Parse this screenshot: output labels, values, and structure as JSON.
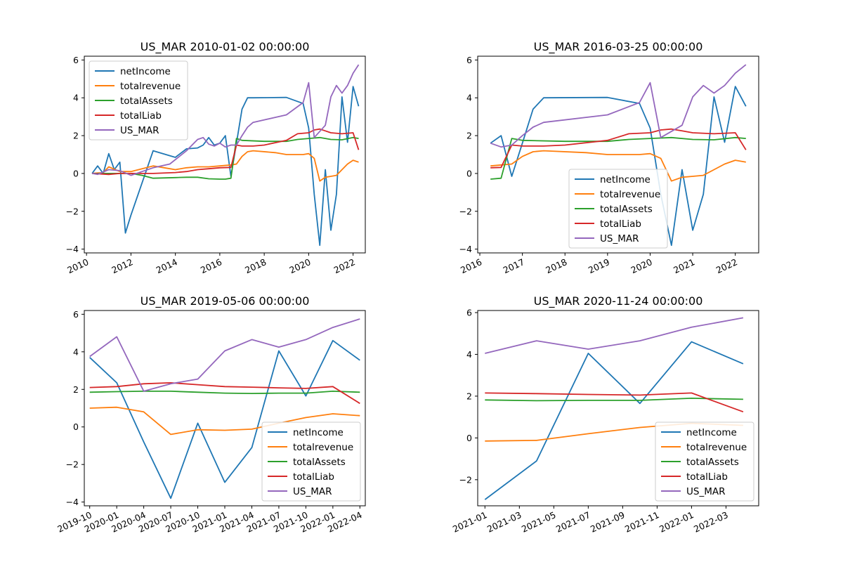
{
  "colors": {
    "netIncome": "#1f77b4",
    "totalrevenue": "#ff7f0e",
    "totalAssets": "#2ca02c",
    "totalLiab": "#d62728",
    "US_MAR": "#9467bd"
  },
  "chart_data": [
    {
      "type": "line",
      "title": "US_MAR 2010-01-02 00:00:00",
      "xlim": [
        2009.9,
        2022.55
      ],
      "ylim": [
        -4.2,
        6.2
      ],
      "xticks": [
        2010,
        2012,
        2014,
        2016,
        2018,
        2020,
        2022
      ],
      "xticklabels": [
        "2010",
        "2012",
        "2014",
        "2016",
        "2018",
        "2020",
        "2022"
      ],
      "yticks": [
        -4,
        -2,
        0,
        2,
        4,
        6
      ],
      "yticklabels": [
        "−4",
        "−2",
        "0",
        "2",
        "4",
        "6"
      ],
      "legend": "upper left",
      "series": [
        {
          "name": "netIncome",
          "x": [
            2010.25,
            2010.5,
            2010.75,
            2011.0,
            2011.25,
            2011.5,
            2011.75,
            2012.0,
            2013.0,
            2014.0,
            2014.5,
            2015.0,
            2015.25,
            2015.5,
            2015.75,
            2016.0,
            2016.25,
            2016.5,
            2016.75,
            2017.0,
            2017.25,
            2017.5,
            2019.0,
            2019.75,
            2020.0,
            2020.25,
            2020.5,
            2020.75,
            2021.0,
            2021.25,
            2021.5,
            2021.75,
            2022.0,
            2022.25
          ],
          "y": [
            0.0,
            0.4,
            0.0,
            1.05,
            0.2,
            0.6,
            -3.15,
            -2.2,
            1.2,
            0.85,
            1.3,
            1.35,
            1.5,
            1.9,
            1.5,
            1.6,
            2.0,
            -0.15,
            1.6,
            3.4,
            4.0,
            4.0,
            4.02,
            3.7,
            2.4,
            -1.1,
            -3.8,
            0.2,
            -3.0,
            -1.1,
            4.05,
            1.65,
            4.6,
            3.55
          ]
        },
        {
          "name": "totalrevenue",
          "x": [
            2010.25,
            2010.75,
            2011.0,
            2011.5,
            2012.0,
            2013.0,
            2013.5,
            2014.0,
            2014.5,
            2015.0,
            2015.5,
            2016.0,
            2016.5,
            2016.75,
            2017.0,
            2017.25,
            2017.5,
            2018.5,
            2019.0,
            2019.75,
            2020.0,
            2020.25,
            2020.5,
            2020.75,
            2021.0,
            2021.25,
            2021.5,
            2021.75,
            2022.0,
            2022.25
          ],
          "y": [
            0.0,
            0.05,
            0.35,
            0.1,
            0.1,
            0.4,
            0.3,
            0.2,
            0.3,
            0.35,
            0.35,
            0.4,
            0.45,
            0.5,
            0.9,
            1.15,
            1.2,
            1.1,
            1.0,
            1.0,
            1.05,
            0.8,
            -0.4,
            -0.2,
            -0.15,
            -0.1,
            0.2,
            0.5,
            0.7,
            0.6
          ]
        },
        {
          "name": "totalAssets",
          "x": [
            2010.25,
            2011.0,
            2012.0,
            2012.5,
            2013.0,
            2014.0,
            2014.5,
            2015.0,
            2015.5,
            2016.0,
            2016.25,
            2016.5,
            2016.75,
            2017.0,
            2018.0,
            2019.0,
            2019.5,
            2020.0,
            2020.5,
            2021.0,
            2021.5,
            2022.0,
            2022.25
          ],
          "y": [
            0.0,
            0.0,
            0.0,
            -0.1,
            -0.25,
            -0.22,
            -0.2,
            -0.2,
            -0.28,
            -0.3,
            -0.3,
            -0.25,
            1.85,
            1.75,
            1.7,
            1.7,
            1.8,
            1.85,
            1.9,
            1.8,
            1.78,
            1.9,
            1.85
          ]
        },
        {
          "name": "totalLiab",
          "x": [
            2010.25,
            2011.0,
            2011.5,
            2012.0,
            2013.0,
            2014.0,
            2014.5,
            2015.0,
            2015.5,
            2016.0,
            2016.5,
            2016.75,
            2017.0,
            2017.5,
            2018.0,
            2019.0,
            2019.5,
            2020.0,
            2020.25,
            2020.5,
            2020.75,
            2021.0,
            2021.5,
            2022.0,
            2022.25
          ],
          "y": [
            0.0,
            -0.05,
            0.0,
            0.0,
            0.0,
            0.05,
            0.1,
            0.2,
            0.25,
            0.3,
            0.32,
            1.5,
            1.45,
            1.45,
            1.5,
            1.75,
            2.1,
            2.15,
            2.3,
            2.35,
            2.25,
            2.15,
            2.1,
            2.15,
            1.25
          ]
        },
        {
          "name": "US_MAR",
          "x": [
            2010.25,
            2010.5,
            2011.0,
            2011.5,
            2012.0,
            2013.0,
            2013.75,
            2014.5,
            2014.75,
            2015.0,
            2015.25,
            2015.5,
            2015.75,
            2016.0,
            2016.25,
            2016.5,
            2016.75,
            2017.0,
            2017.25,
            2017.5,
            2019.0,
            2019.75,
            2020.0,
            2020.25,
            2020.75,
            2021.0,
            2021.25,
            2021.5,
            2021.75,
            2022.0,
            2022.25
          ],
          "y": [
            0.0,
            -0.05,
            0.2,
            0.15,
            -0.1,
            0.3,
            0.5,
            1.2,
            1.5,
            1.8,
            1.9,
            1.55,
            1.45,
            1.6,
            1.4,
            1.5,
            1.5,
            2.0,
            2.45,
            2.7,
            3.1,
            3.75,
            4.8,
            1.9,
            2.55,
            4.05,
            4.65,
            4.25,
            4.65,
            5.3,
            5.75
          ]
        }
      ]
    },
    {
      "type": "line",
      "title": "US_MAR 2016-03-25 00:00:00",
      "xlim": [
        2015.95,
        2022.55
      ],
      "ylim": [
        -4.2,
        6.2
      ],
      "xticks": [
        2016,
        2017,
        2018,
        2019,
        2020,
        2021,
        2022
      ],
      "xticklabels": [
        "2016",
        "2017",
        "2018",
        "2019",
        "2020",
        "2021",
        "2022"
      ],
      "yticks": [
        -4,
        -2,
        0,
        2,
        4,
        6
      ],
      "yticklabels": [
        "−4",
        "−2",
        "0",
        "2",
        "4",
        "6"
      ],
      "legend": "lower center",
      "series": [
        {
          "name": "netIncome",
          "x": [
            2016.25,
            2016.5,
            2016.75,
            2017.0,
            2017.25,
            2017.5,
            2019.0,
            2019.75,
            2020.0,
            2020.25,
            2020.5,
            2020.75,
            2021.0,
            2021.25,
            2021.5,
            2021.75,
            2022.0,
            2022.25
          ],
          "y": [
            1.6,
            2.0,
            -0.15,
            1.6,
            3.4,
            4.0,
            4.02,
            3.7,
            2.4,
            -1.1,
            -3.8,
            0.2,
            -3.0,
            -1.1,
            4.05,
            1.65,
            4.6,
            3.55
          ]
        },
        {
          "name": "totalrevenue",
          "x": [
            2016.25,
            2016.5,
            2016.75,
            2017.0,
            2017.25,
            2017.5,
            2018.5,
            2019.0,
            2019.75,
            2020.0,
            2020.25,
            2020.5,
            2020.75,
            2021.0,
            2021.25,
            2021.5,
            2021.75,
            2022.0,
            2022.25
          ],
          "y": [
            0.4,
            0.45,
            0.5,
            0.9,
            1.15,
            1.2,
            1.1,
            1.0,
            1.0,
            1.05,
            0.8,
            -0.4,
            -0.2,
            -0.15,
            -0.1,
            0.2,
            0.5,
            0.7,
            0.6
          ]
        },
        {
          "name": "totalAssets",
          "x": [
            2016.25,
            2016.5,
            2016.75,
            2017.0,
            2018.0,
            2019.0,
            2019.5,
            2020.0,
            2020.5,
            2021.0,
            2021.5,
            2022.0,
            2022.25
          ],
          "y": [
            -0.3,
            -0.25,
            1.85,
            1.75,
            1.7,
            1.7,
            1.8,
            1.85,
            1.9,
            1.8,
            1.78,
            1.9,
            1.85
          ]
        },
        {
          "name": "totalLiab",
          "x": [
            2016.25,
            2016.5,
            2016.75,
            2017.0,
            2017.5,
            2018.0,
            2019.0,
            2019.5,
            2020.0,
            2020.25,
            2020.5,
            2020.75,
            2021.0,
            2021.5,
            2022.0,
            2022.25
          ],
          "y": [
            0.3,
            0.32,
            1.5,
            1.45,
            1.45,
            1.5,
            1.75,
            2.1,
            2.15,
            2.3,
            2.35,
            2.25,
            2.15,
            2.1,
            2.15,
            1.25
          ]
        },
        {
          "name": "US_MAR",
          "x": [
            2016.25,
            2016.5,
            2016.75,
            2017.0,
            2017.25,
            2017.5,
            2019.0,
            2019.75,
            2020.0,
            2020.25,
            2020.75,
            2021.0,
            2021.25,
            2021.5,
            2021.75,
            2022.0,
            2022.25
          ],
          "y": [
            1.6,
            1.4,
            1.5,
            2.0,
            2.45,
            2.7,
            3.1,
            3.75,
            4.8,
            1.9,
            2.55,
            4.05,
            4.65,
            4.25,
            4.65,
            5.3,
            5.75
          ]
        }
      ]
    },
    {
      "type": "line",
      "title": "US_MAR 2019-05-06 00:00:00",
      "xlim": [
        2019.7,
        2022.3
      ],
      "ylim": [
        -4.2,
        6.2
      ],
      "xticks": [
        2019.75,
        2020.0,
        2020.25,
        2020.5,
        2020.75,
        2021.0,
        2021.25,
        2021.5,
        2021.75,
        2022.0,
        2022.25
      ],
      "xticklabels": [
        "2019-10",
        "2020-01",
        "2020-04",
        "2020-07",
        "2020-10",
        "2021-01",
        "2021-04",
        "2021-07",
        "2021-10",
        "2022-01",
        "2022-04"
      ],
      "yticks": [
        -4,
        -2,
        0,
        2,
        4,
        6
      ],
      "yticklabels": [
        "−4",
        "−2",
        "0",
        "2",
        "4",
        "6"
      ],
      "legend": "lower right",
      "series": [
        {
          "name": "netIncome",
          "x": [
            2019.75,
            2020.0,
            2020.25,
            2020.5,
            2020.75,
            2021.0,
            2021.25,
            2021.5,
            2021.75,
            2022.0,
            2022.25
          ],
          "y": [
            3.7,
            2.35,
            -0.8,
            -3.8,
            0.2,
            -2.95,
            -1.1,
            4.05,
            1.65,
            4.6,
            3.55
          ]
        },
        {
          "name": "totalrevenue",
          "x": [
            2019.75,
            2020.0,
            2020.25,
            2020.5,
            2020.75,
            2021.0,
            2021.25,
            2021.5,
            2021.75,
            2022.0,
            2022.25
          ],
          "y": [
            1.0,
            1.05,
            0.8,
            -0.4,
            -0.15,
            -0.18,
            -0.12,
            0.2,
            0.5,
            0.7,
            0.6
          ]
        },
        {
          "name": "totalAssets",
          "x": [
            2019.75,
            2020.0,
            2020.25,
            2020.5,
            2020.75,
            2021.0,
            2021.25,
            2021.5,
            2021.75,
            2022.0,
            2022.25
          ],
          "y": [
            1.85,
            1.88,
            1.9,
            1.9,
            1.85,
            1.8,
            1.78,
            1.8,
            1.8,
            1.9,
            1.85
          ]
        },
        {
          "name": "totalLiab",
          "x": [
            2019.75,
            2020.0,
            2020.25,
            2020.5,
            2020.75,
            2021.0,
            2021.25,
            2021.5,
            2021.75,
            2022.0,
            2022.25
          ],
          "y": [
            2.1,
            2.15,
            2.3,
            2.35,
            2.25,
            2.15,
            2.12,
            2.08,
            2.05,
            2.15,
            1.25
          ]
        },
        {
          "name": "US_MAR",
          "x": [
            2019.75,
            2020.0,
            2020.25,
            2020.5,
            2020.75,
            2021.0,
            2021.25,
            2021.5,
            2021.75,
            2022.0,
            2022.25
          ],
          "y": [
            3.75,
            4.8,
            1.9,
            2.3,
            2.55,
            4.05,
            4.65,
            4.25,
            4.65,
            5.3,
            5.75
          ]
        }
      ]
    },
    {
      "type": "line",
      "title": "US_MAR 2020-11-24 00:00:00",
      "xlim": [
        2020.965,
        2022.325
      ],
      "ylim": [
        -3.25,
        6.1
      ],
      "xticks": [
        2021.0,
        2021.1667,
        2021.3333,
        2021.5,
        2021.6667,
        2021.8333,
        2022.0,
        2022.1667
      ],
      "xticklabels": [
        "2021-01",
        "2021-03",
        "2021-05",
        "2021-07",
        "2021-09",
        "2021-11",
        "2022-01",
        "2022-03"
      ],
      "yticks": [
        -2,
        0,
        2,
        4,
        6
      ],
      "yticklabels": [
        "−2",
        "0",
        "2",
        "4",
        "6"
      ],
      "legend": "lower right",
      "series": [
        {
          "name": "netIncome",
          "x": [
            2021.0,
            2021.25,
            2021.5,
            2021.75,
            2022.0,
            2022.25
          ],
          "y": [
            -2.95,
            -1.1,
            4.05,
            1.65,
            4.6,
            3.55
          ]
        },
        {
          "name": "totalrevenue",
          "x": [
            2021.0,
            2021.25,
            2021.5,
            2021.75,
            2022.0,
            2022.25
          ],
          "y": [
            -0.15,
            -0.12,
            0.2,
            0.5,
            0.7,
            0.6
          ]
        },
        {
          "name": "totalAssets",
          "x": [
            2021.0,
            2021.25,
            2021.5,
            2021.75,
            2022.0,
            2022.25
          ],
          "y": [
            1.82,
            1.78,
            1.8,
            1.8,
            1.9,
            1.85
          ]
        },
        {
          "name": "totalLiab",
          "x": [
            2021.0,
            2021.25,
            2021.5,
            2021.75,
            2022.0,
            2022.25
          ],
          "y": [
            2.15,
            2.12,
            2.08,
            2.05,
            2.15,
            1.25
          ]
        },
        {
          "name": "US_MAR",
          "x": [
            2021.0,
            2021.25,
            2021.5,
            2021.75,
            2022.0,
            2022.25
          ],
          "y": [
            4.05,
            4.65,
            4.25,
            4.65,
            5.3,
            5.75
          ]
        }
      ]
    }
  ]
}
